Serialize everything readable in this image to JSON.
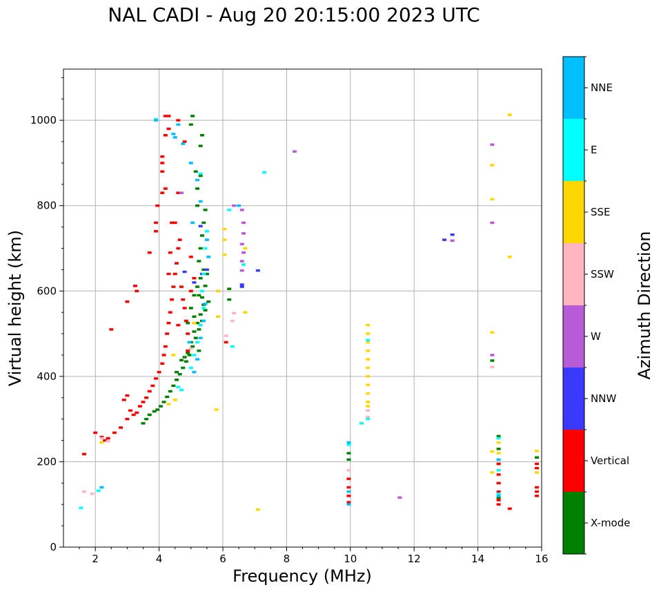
{
  "chart_data": {
    "type": "scatter",
    "title": "NAL CADI - Aug 20 20:15:00 2023 UTC",
    "xlabel": "Frequency (MHz)",
    "ylabel": "Virtual height (km)",
    "xlim": [
      1,
      16
    ],
    "ylim": [
      0,
      1120
    ],
    "xticks": [
      2,
      4,
      6,
      8,
      10,
      12,
      14,
      16
    ],
    "yticks": [
      0,
      200,
      400,
      600,
      800,
      1000
    ],
    "grid": true,
    "colorbar": {
      "label": "Azimuth Direction",
      "categories": [
        {
          "name": "X-mode",
          "color": "#008000"
        },
        {
          "name": "Vertical",
          "color": "#ff0000"
        },
        {
          "name": "NNW",
          "color": "#3a3aff"
        },
        {
          "name": "W",
          "color": "#b75bd6"
        },
        {
          "name": "SSW",
          "color": "#ffb6c1"
        },
        {
          "name": "SSE",
          "color": "#ffd700"
        },
        {
          "name": "E",
          "color": "#00ffff"
        },
        {
          "name": "NNE",
          "color": "#00bfff"
        }
      ]
    },
    "series": [
      {
        "name": "X-mode",
        "points": [
          [
            3.85,
            318
          ],
          [
            3.95,
            322
          ],
          [
            4.05,
            330
          ],
          [
            4.15,
            340
          ],
          [
            4.25,
            352
          ],
          [
            4.35,
            365
          ],
          [
            4.45,
            378
          ],
          [
            4.55,
            392
          ],
          [
            4.65,
            405
          ],
          [
            4.75,
            420
          ],
          [
            4.85,
            435
          ],
          [
            4.95,
            450
          ],
          [
            5.05,
            470
          ],
          [
            5.15,
            490
          ],
          [
            5.25,
            510
          ],
          [
            5.35,
            530
          ],
          [
            5.45,
            555
          ],
          [
            5.55,
            575
          ],
          [
            4.7,
            438
          ],
          [
            4.9,
            455
          ],
          [
            5.0,
            480
          ],
          [
            5.1,
            505
          ],
          [
            5.2,
            525
          ],
          [
            5.3,
            545
          ],
          [
            5.4,
            568
          ],
          [
            5.1,
            590
          ],
          [
            5.2,
            610
          ],
          [
            5.3,
            630
          ],
          [
            5.4,
            650
          ],
          [
            5.25,
            670
          ],
          [
            5.3,
            700
          ],
          [
            5.35,
            730
          ],
          [
            5.4,
            760
          ],
          [
            5.45,
            790
          ],
          [
            5.2,
            840
          ],
          [
            5.3,
            870
          ],
          [
            5.3,
            940
          ],
          [
            5.35,
            965
          ],
          [
            5.05,
            1010
          ],
          [
            5.0,
            990
          ],
          [
            5.2,
            800
          ],
          [
            5.15,
            880
          ],
          [
            5.25,
            590
          ],
          [
            5.35,
            585
          ],
          [
            5.0,
            560
          ],
          [
            5.1,
            540
          ],
          [
            4.9,
            525
          ],
          [
            6.2,
            605
          ],
          [
            6.2,
            580
          ],
          [
            9.95,
            220
          ],
          [
            9.95,
            205
          ],
          [
            14.45,
            437
          ],
          [
            14.65,
            260
          ],
          [
            14.65,
            230
          ],
          [
            14.65,
            195
          ],
          [
            14.65,
            150
          ],
          [
            14.65,
            115
          ],
          [
            15.85,
            210
          ],
          [
            3.7,
            310
          ],
          [
            3.6,
            300
          ],
          [
            3.5,
            290
          ],
          [
            5.45,
            612
          ],
          [
            5.5,
            640
          ],
          [
            5.25,
            460
          ],
          [
            4.55,
            410
          ],
          [
            4.8,
            445
          ]
        ]
      },
      {
        "name": "Vertical",
        "points": [
          [
            1.65,
            218
          ],
          [
            2.0,
            268
          ],
          [
            2.2,
            258
          ],
          [
            2.3,
            250
          ],
          [
            2.4,
            255
          ],
          [
            2.5,
            510
          ],
          [
            2.6,
            268
          ],
          [
            2.8,
            280
          ],
          [
            3.0,
            300
          ],
          [
            3.1,
            320
          ],
          [
            3.2,
            310
          ],
          [
            3.3,
            315
          ],
          [
            3.4,
            330
          ],
          [
            3.5,
            340
          ],
          [
            3.6,
            350
          ],
          [
            3.7,
            365
          ],
          [
            3.8,
            378
          ],
          [
            3.9,
            395
          ],
          [
            4.0,
            410
          ],
          [
            4.1,
            430
          ],
          [
            4.15,
            450
          ],
          [
            4.2,
            470
          ],
          [
            4.25,
            500
          ],
          [
            4.3,
            525
          ],
          [
            4.35,
            550
          ],
          [
            4.4,
            580
          ],
          [
            4.45,
            610
          ],
          [
            4.5,
            640
          ],
          [
            4.55,
            665
          ],
          [
            4.6,
            700
          ],
          [
            4.65,
            720
          ],
          [
            4.7,
            610
          ],
          [
            4.75,
            580
          ],
          [
            4.8,
            560
          ],
          [
            4.85,
            530
          ],
          [
            4.9,
            500
          ],
          [
            5.0,
            680
          ],
          [
            5.1,
            630
          ],
          [
            4.4,
            760
          ],
          [
            4.2,
            840
          ],
          [
            4.1,
            830
          ],
          [
            4.1,
            880
          ],
          [
            4.1,
            900
          ],
          [
            4.1,
            915
          ],
          [
            4.2,
            965
          ],
          [
            4.2,
            1010
          ],
          [
            4.3,
            1010
          ],
          [
            4.6,
            1000
          ],
          [
            3.95,
            800
          ],
          [
            3.9,
            760
          ],
          [
            3.9,
            740
          ],
          [
            3.7,
            690
          ],
          [
            3.3,
            600
          ],
          [
            3.0,
            575
          ],
          [
            3.0,
            355
          ],
          [
            4.6,
            830
          ],
          [
            4.3,
            980
          ],
          [
            2.9,
            345
          ],
          [
            3.25,
            612
          ],
          [
            4.3,
            640
          ],
          [
            4.35,
            690
          ],
          [
            4.5,
            760
          ],
          [
            4.8,
            950
          ],
          [
            6.1,
            480
          ],
          [
            9.95,
            160
          ],
          [
            9.95,
            140
          ],
          [
            9.95,
            120
          ],
          [
            9.95,
            105
          ],
          [
            14.65,
            195
          ],
          [
            14.65,
            170
          ],
          [
            14.65,
            150
          ],
          [
            14.65,
            130
          ],
          [
            14.65,
            110
          ],
          [
            14.65,
            100
          ],
          [
            15.0,
            90
          ],
          [
            15.85,
            195
          ],
          [
            15.85,
            185
          ],
          [
            15.85,
            140
          ],
          [
            15.85,
            130
          ],
          [
            15.85,
            120
          ],
          [
            4.6,
            520
          ],
          [
            4.9,
            460
          ],
          [
            5.0,
            600
          ]
        ]
      },
      {
        "name": "NNW",
        "points": [
          [
            4.8,
            645
          ],
          [
            5.1,
            620
          ],
          [
            5.35,
            640
          ],
          [
            5.5,
            650
          ],
          [
            6.6,
            610
          ],
          [
            6.6,
            615
          ],
          [
            12.95,
            720
          ],
          [
            13.2,
            732
          ],
          [
            7.1,
            648
          ],
          [
            5.3,
            752
          ]
        ]
      },
      {
        "name": "W",
        "points": [
          [
            6.6,
            790
          ],
          [
            6.65,
            760
          ],
          [
            6.65,
            735
          ],
          [
            6.6,
            710
          ],
          [
            6.65,
            690
          ],
          [
            6.6,
            670
          ],
          [
            6.6,
            648
          ],
          [
            8.25,
            927
          ],
          [
            11.55,
            116
          ],
          [
            14.45,
            943
          ],
          [
            14.45,
            760
          ],
          [
            14.45,
            450
          ],
          [
            13.2,
            718
          ],
          [
            4.7,
            830
          ],
          [
            6.35,
            800
          ]
        ]
      },
      {
        "name": "SSW",
        "points": [
          [
            1.65,
            130
          ],
          [
            1.9,
            125
          ],
          [
            2.2,
            255
          ],
          [
            2.4,
            248
          ],
          [
            6.35,
            548
          ],
          [
            6.3,
            530
          ],
          [
            5.0,
            465
          ],
          [
            14.45,
            422
          ],
          [
            10.55,
            320
          ],
          [
            10.55,
            305
          ],
          [
            9.95,
            180
          ],
          [
            6.1,
            495
          ]
        ]
      },
      {
        "name": "SSE",
        "points": [
          [
            4.3,
            335
          ],
          [
            4.5,
            345
          ],
          [
            5.8,
            322
          ],
          [
            6.05,
            745
          ],
          [
            6.05,
            685
          ],
          [
            6.05,
            720
          ],
          [
            5.85,
            600
          ],
          [
            5.85,
            540
          ],
          [
            6.7,
            700
          ],
          [
            6.7,
            550
          ],
          [
            10.55,
            520
          ],
          [
            10.55,
            500
          ],
          [
            10.55,
            480
          ],
          [
            10.55,
            460
          ],
          [
            10.55,
            440
          ],
          [
            10.55,
            420
          ],
          [
            10.55,
            400
          ],
          [
            10.55,
            380
          ],
          [
            10.55,
            360
          ],
          [
            10.55,
            340
          ],
          [
            10.55,
            330
          ],
          [
            7.1,
            88
          ],
          [
            14.45,
            895
          ],
          [
            14.45,
            815
          ],
          [
            14.45,
            503
          ],
          [
            14.45,
            224
          ],
          [
            14.45,
            175
          ],
          [
            15.0,
            1013
          ],
          [
            15.0,
            680
          ],
          [
            14.65,
            245
          ],
          [
            14.65,
            220
          ],
          [
            15.85,
            225
          ],
          [
            15.85,
            175
          ],
          [
            2.2,
            245
          ],
          [
            5.1,
            525
          ],
          [
            4.45,
            450
          ]
        ]
      },
      {
        "name": "E",
        "points": [
          [
            1.55,
            92
          ],
          [
            2.1,
            132
          ],
          [
            3.9,
            1002
          ],
          [
            4.6,
            375
          ],
          [
            4.7,
            368
          ],
          [
            5.0,
            420
          ],
          [
            5.1,
            450
          ],
          [
            5.2,
            480
          ],
          [
            5.3,
            520
          ],
          [
            5.4,
            560
          ],
          [
            5.35,
            600
          ],
          [
            5.4,
            640
          ],
          [
            5.45,
            700
          ],
          [
            5.5,
            740
          ],
          [
            6.2,
            790
          ],
          [
            6.65,
            662
          ],
          [
            7.3,
            878
          ],
          [
            10.35,
            290
          ],
          [
            10.55,
            300
          ],
          [
            10.55,
            485
          ],
          [
            9.95,
            240
          ],
          [
            14.65,
            255
          ],
          [
            14.65,
            180
          ],
          [
            14.65,
            125
          ],
          [
            6.3,
            470
          ],
          [
            5.3,
            875
          ]
        ]
      },
      {
        "name": "NNE",
        "points": [
          [
            3.9,
            1000
          ],
          [
            4.6,
            990
          ],
          [
            4.5,
            960
          ],
          [
            4.75,
            945
          ],
          [
            5.0,
            900
          ],
          [
            5.2,
            860
          ],
          [
            5.3,
            810
          ],
          [
            5.5,
            720
          ],
          [
            5.55,
            680
          ],
          [
            5.45,
            570
          ],
          [
            5.4,
            530
          ],
          [
            5.3,
            490
          ],
          [
            5.2,
            440
          ],
          [
            5.1,
            410
          ],
          [
            9.95,
            245
          ],
          [
            9.95,
            100
          ],
          [
            9.95,
            130
          ],
          [
            6.5,
            800
          ],
          [
            2.2,
            140
          ],
          [
            4.45,
            968
          ],
          [
            5.05,
            760
          ],
          [
            4.95,
            480
          ],
          [
            14.65,
            205
          ],
          [
            14.65,
            120
          ]
        ]
      }
    ]
  }
}
